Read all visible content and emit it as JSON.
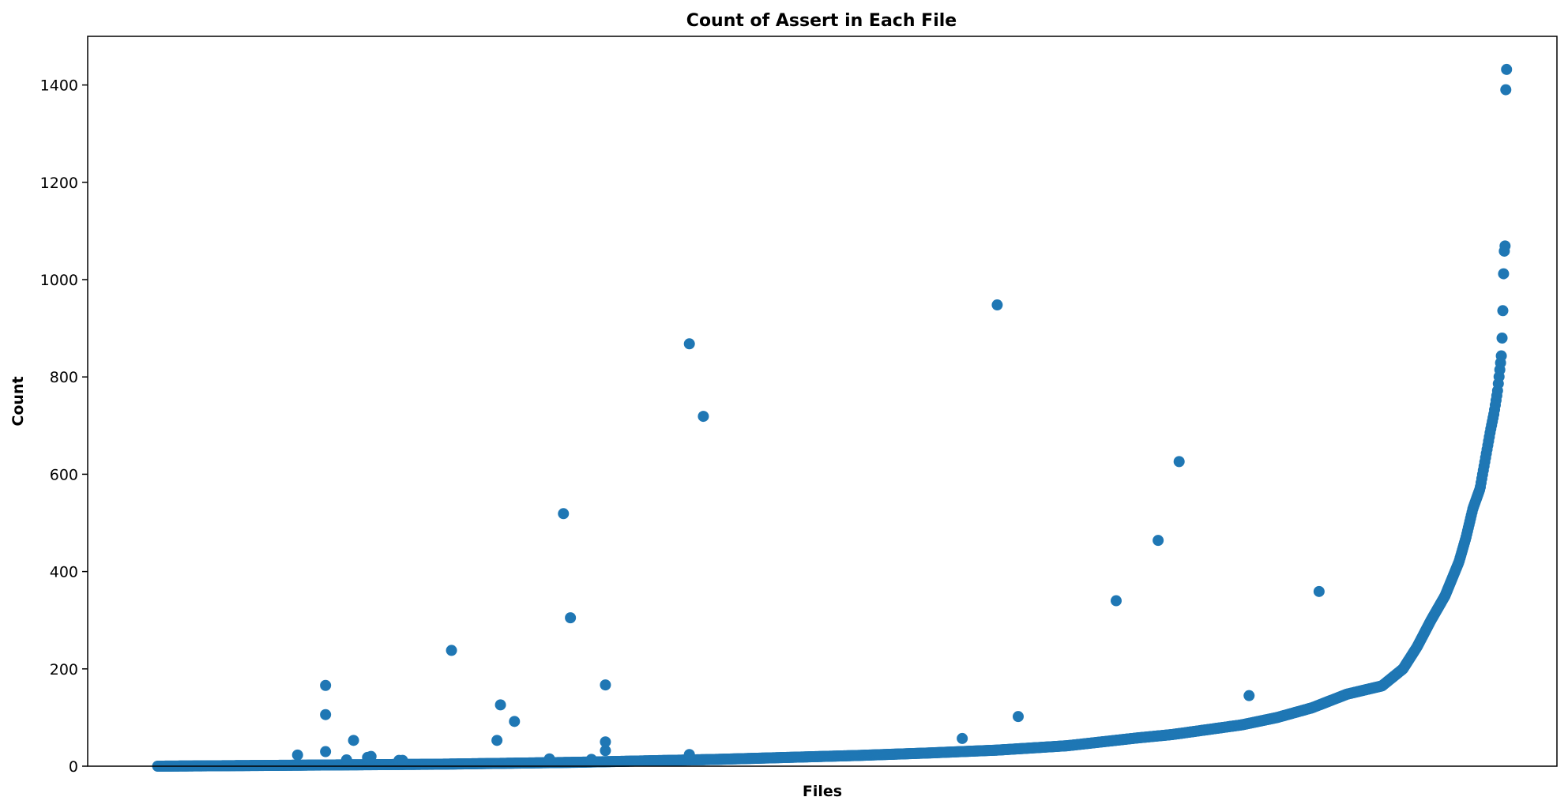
{
  "chart_data": {
    "type": "scatter",
    "title": "Count of Assert in Each File",
    "xlabel": "Files",
    "ylabel": "Count",
    "ylim": [
      0,
      1500
    ],
    "xlim": [
      -100,
      2000
    ],
    "x_tick_labels_shown": false,
    "y_ticks": [
      0,
      200,
      400,
      600,
      800,
      1000,
      1200,
      1400
    ],
    "grid": false,
    "legend": "none",
    "marker_color": "#1f77b4",
    "approx_point_count": 1800,
    "trend_points": [
      [
        0,
        0
      ],
      [
        100,
        1
      ],
      [
        200,
        2
      ],
      [
        300,
        3
      ],
      [
        400,
        4
      ],
      [
        500,
        6
      ],
      [
        600,
        8
      ],
      [
        700,
        11
      ],
      [
        800,
        14
      ],
      [
        900,
        18
      ],
      [
        1000,
        22
      ],
      [
        1100,
        27
      ],
      [
        1200,
        33
      ],
      [
        1300,
        42
      ],
      [
        1400,
        58
      ],
      [
        1450,
        65
      ],
      [
        1500,
        75
      ],
      [
        1550,
        85
      ],
      [
        1600,
        100
      ],
      [
        1650,
        120
      ],
      [
        1700,
        148
      ],
      [
        1750,
        165
      ],
      [
        1780,
        200
      ],
      [
        1800,
        245
      ],
      [
        1820,
        300
      ],
      [
        1840,
        350
      ],
      [
        1860,
        420
      ],
      [
        1870,
        470
      ],
      [
        1880,
        530
      ],
      [
        1890,
        570
      ],
      [
        1900,
        650
      ],
      [
        1905,
        690
      ],
      [
        1910,
        725
      ],
      [
        1915,
        770
      ],
      [
        1918,
        810
      ],
      [
        1921,
        850
      ],
      [
        1923,
        955
      ],
      [
        1924,
        1035
      ],
      [
        1925,
        1065
      ],
      [
        1926,
        1070
      ],
      [
        1927,
        1415
      ],
      [
        1928,
        1432
      ]
    ],
    "outliers": [
      [
        200,
        23
      ],
      [
        240,
        30
      ],
      [
        240,
        106
      ],
      [
        240,
        166
      ],
      [
        270,
        13
      ],
      [
        280,
        53
      ],
      [
        300,
        18
      ],
      [
        305,
        20
      ],
      [
        345,
        12
      ],
      [
        350,
        12
      ],
      [
        420,
        238
      ],
      [
        485,
        53
      ],
      [
        490,
        126
      ],
      [
        510,
        92
      ],
      [
        560,
        15
      ],
      [
        580,
        519
      ],
      [
        590,
        305
      ],
      [
        620,
        14
      ],
      [
        640,
        32
      ],
      [
        640,
        50
      ],
      [
        640,
        167
      ],
      [
        760,
        24
      ],
      [
        760,
        868
      ],
      [
        780,
        719
      ],
      [
        1150,
        57
      ],
      [
        1200,
        948
      ],
      [
        1230,
        102
      ],
      [
        1370,
        340
      ],
      [
        1430,
        464
      ],
      [
        1460,
        626
      ],
      [
        1560,
        145
      ],
      [
        1660,
        359
      ]
    ]
  }
}
